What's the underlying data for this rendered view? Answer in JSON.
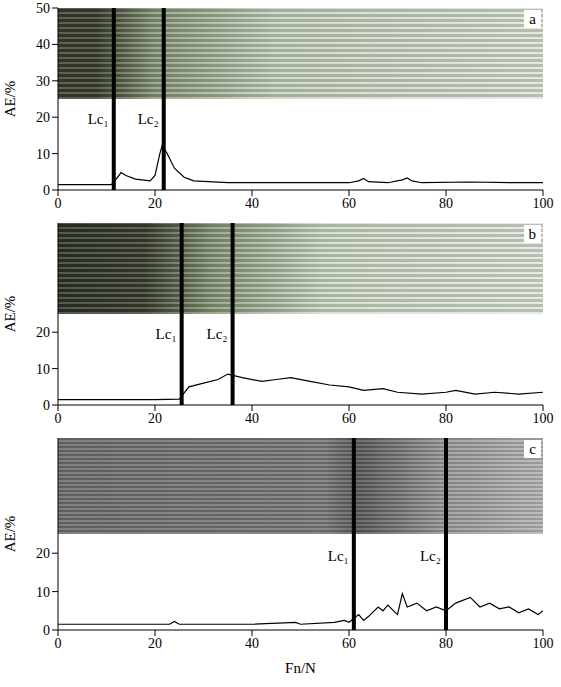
{
  "chart_data": [
    {
      "type": "line",
      "title": "a",
      "y_label": "AE/%",
      "x": [
        0,
        5,
        11,
        12,
        13,
        14,
        16,
        19,
        20,
        21,
        21.5,
        22.5,
        24,
        26,
        28,
        35,
        45,
        55,
        60,
        62,
        63,
        64,
        68,
        71,
        72,
        73,
        75,
        85,
        95,
        100
      ],
      "values": [
        1.5,
        1.5,
        1.5,
        3,
        4.8,
        4,
        3,
        2.5,
        4,
        10,
        12.3,
        10,
        6,
        3.5,
        2.5,
        2,
        2,
        2,
        2,
        2.5,
        3.2,
        2.3,
        2,
        2.8,
        3.3,
        2.5,
        2,
        2.2,
        2,
        2
      ],
      "xlim": [
        0,
        100
      ],
      "xticks": [
        0,
        20,
        40,
        60,
        80,
        100
      ],
      "ylim": [
        0,
        50
      ],
      "yticks": [
        0,
        10,
        20,
        30,
        40,
        50
      ],
      "annotations": [
        {
          "text": "Lc₁",
          "x": 11.5
        },
        {
          "text": "Lc₂",
          "x": 21.8
        }
      ]
    },
    {
      "type": "line",
      "title": "b",
      "y_label": "AE/%",
      "x": [
        0,
        10,
        20,
        25,
        27,
        30,
        33,
        35,
        38,
        42,
        45,
        48,
        52,
        56,
        60,
        63,
        67,
        70,
        75,
        80,
        82,
        86,
        90,
        95,
        100
      ],
      "values": [
        1.5,
        1.5,
        1.5,
        1.6,
        5,
        6,
        7,
        8.5,
        7.5,
        6.5,
        7,
        7.5,
        6.5,
        5.5,
        5,
        4,
        4.5,
        3.5,
        3,
        3.5,
        4,
        3,
        3.5,
        3,
        3.5
      ],
      "xlim": [
        0,
        100
      ],
      "xticks": [
        0,
        20,
        40,
        60,
        80,
        100
      ],
      "ylim": [
        0,
        50
      ],
      "yticks": [
        0,
        10,
        20
      ],
      "annotations": [
        {
          "text": "Lc₁",
          "x": 25.5
        },
        {
          "text": "Lc₂",
          "x": 36
        }
      ]
    },
    {
      "type": "line",
      "title": "c",
      "y_label": "AE/%",
      "x_label": "Fn/N",
      "x": [
        0,
        10,
        23,
        24,
        25,
        40,
        49,
        50,
        57,
        59,
        60,
        62,
        63,
        64,
        66,
        67,
        68,
        70,
        71,
        72,
        74,
        76,
        78,
        80,
        82,
        85,
        87,
        89,
        91,
        93,
        95,
        97,
        99,
        100
      ],
      "values": [
        1.5,
        1.5,
        1.5,
        2.2,
        1.5,
        1.5,
        2,
        1.5,
        2,
        2.5,
        2,
        4,
        2.5,
        3.5,
        6,
        5,
        6.5,
        4,
        9.5,
        6,
        7,
        5,
        6,
        5,
        7,
        8.5,
        6,
        7,
        5.5,
        6,
        4.5,
        5.5,
        4,
        5
      ],
      "xlim": [
        0,
        100
      ],
      "xticks": [
        0,
        20,
        40,
        60,
        80,
        100
      ],
      "ylim": [
        0,
        50
      ],
      "yticks": [
        0,
        10,
        20
      ],
      "annotations": [
        {
          "text": "Lc₁",
          "x": 61
        },
        {
          "text": "Lc₂",
          "x": 80
        }
      ]
    }
  ]
}
